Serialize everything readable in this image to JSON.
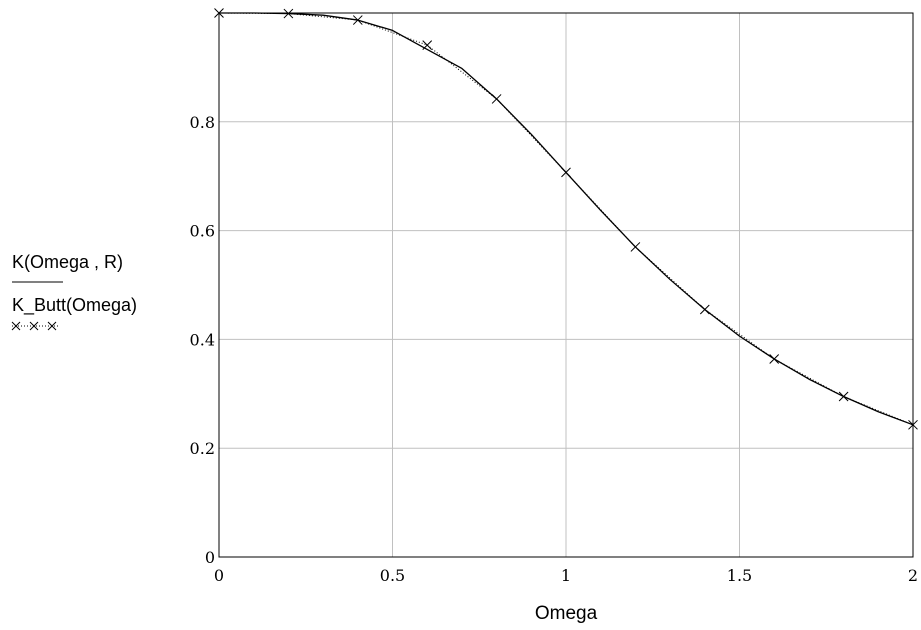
{
  "chart_data": {
    "type": "line",
    "xlabel": "Omega",
    "ylabel": [
      "K(Omega , R)",
      "K_Butt(Omega)"
    ],
    "xlim": [
      0,
      2
    ],
    "ylim": [
      0,
      1
    ],
    "x_ticks": [
      0,
      0.5,
      1,
      1.5,
      2
    ],
    "y_ticks": [
      0,
      0.2,
      0.4,
      0.6,
      0.8
    ],
    "x_tick_labels": [
      "0",
      "0.5",
      "1",
      "1.5",
      "2"
    ],
    "y_tick_labels": [
      "0",
      "0.2",
      "0.4",
      "0.6",
      "0.8"
    ],
    "grid": true,
    "series": [
      {
        "name": "K(Omega , R)",
        "style": "solid",
        "color": "#000000",
        "x": [
          0,
          0.1,
          0.2,
          0.3,
          0.4,
          0.5,
          0.6,
          0.7,
          0.8,
          0.9,
          1.0,
          1.1,
          1.2,
          1.3,
          1.4,
          1.5,
          1.6,
          1.7,
          1.8,
          1.9,
          2.0
        ],
        "values": [
          1.0,
          1.0,
          0.999,
          0.996,
          0.987,
          0.968,
          0.933,
          0.898,
          0.842,
          0.777,
          0.707,
          0.637,
          0.57,
          0.51,
          0.455,
          0.406,
          0.364,
          0.327,
          0.295,
          0.267,
          0.243
        ]
      },
      {
        "name": "K_Butt(Omega)",
        "style": "dotted",
        "marker": "x",
        "color": "#000000",
        "x": [
          0,
          0.2,
          0.4,
          0.6,
          0.8,
          1.0,
          1.2,
          1.4,
          1.6,
          1.8,
          2.0
        ],
        "values": [
          1.0,
          0.999,
          0.987,
          0.941,
          0.842,
          0.707,
          0.57,
          0.455,
          0.364,
          0.295,
          0.243
        ]
      }
    ],
    "legend_placement": "left",
    "legend_markers": [
      "x",
      "x",
      "x"
    ]
  }
}
